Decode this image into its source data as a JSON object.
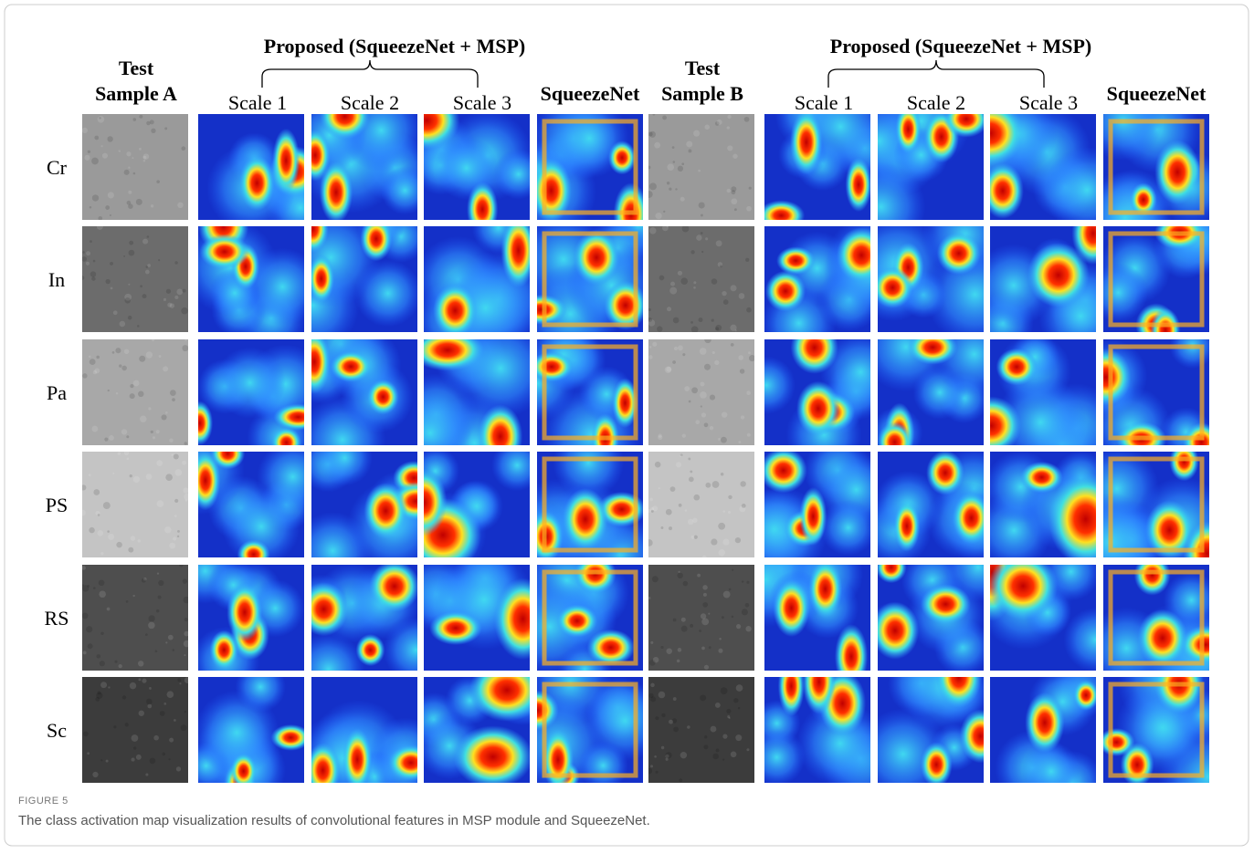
{
  "figure": {
    "groups": [
      {
        "sample": [
          "Test",
          "Sample A"
        ],
        "proposed": "Proposed (SqueezeNet + MSP)",
        "scales": [
          "Scale 1",
          "Scale 2",
          "Scale 3"
        ],
        "baseline": "SqueezeNet"
      },
      {
        "sample": [
          "Test",
          "Sample B"
        ],
        "proposed": "Proposed (SqueezeNet + MSP)",
        "scales": [
          "Scale 1",
          "Scale 2",
          "Scale 3"
        ],
        "baseline": "SqueezeNet"
      }
    ],
    "rows": [
      "Cr",
      "In",
      "Pa",
      "PS",
      "RS",
      "Sc"
    ],
    "label": "FIGURE 5",
    "caption": "The class activation map visualization results of convolutional features in MSP module and SqueezeNet."
  }
}
